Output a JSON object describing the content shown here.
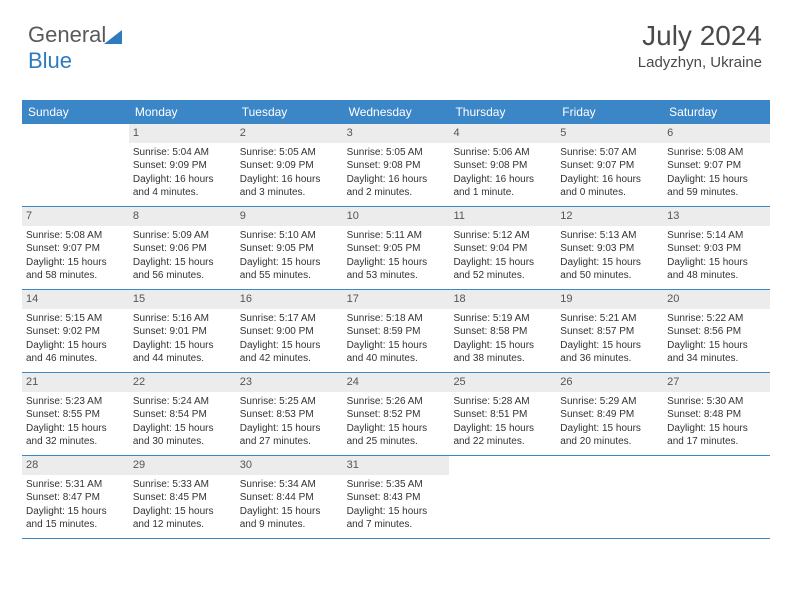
{
  "logo": {
    "text1": "General",
    "text2": "Blue"
  },
  "title": {
    "month": "July 2024",
    "location": "Ladyzhyn, Ukraine"
  },
  "colors": {
    "header_bg": "#3b86c6",
    "header_text": "#ffffff",
    "daynum_bg": "#ececec",
    "border": "#3b86c6",
    "text": "#333333",
    "logo_gray": "#5a5a5a",
    "logo_blue": "#2f7bbf"
  },
  "weekdays": [
    "Sunday",
    "Monday",
    "Tuesday",
    "Wednesday",
    "Thursday",
    "Friday",
    "Saturday"
  ],
  "weeks": [
    [
      {
        "n": "",
        "empty": true
      },
      {
        "n": "1",
        "sr": "Sunrise: 5:04 AM",
        "ss": "Sunset: 9:09 PM",
        "dl": "Daylight: 16 hours and 4 minutes."
      },
      {
        "n": "2",
        "sr": "Sunrise: 5:05 AM",
        "ss": "Sunset: 9:09 PM",
        "dl": "Daylight: 16 hours and 3 minutes."
      },
      {
        "n": "3",
        "sr": "Sunrise: 5:05 AM",
        "ss": "Sunset: 9:08 PM",
        "dl": "Daylight: 16 hours and 2 minutes."
      },
      {
        "n": "4",
        "sr": "Sunrise: 5:06 AM",
        "ss": "Sunset: 9:08 PM",
        "dl": "Daylight: 16 hours and 1 minute."
      },
      {
        "n": "5",
        "sr": "Sunrise: 5:07 AM",
        "ss": "Sunset: 9:07 PM",
        "dl": "Daylight: 16 hours and 0 minutes."
      },
      {
        "n": "6",
        "sr": "Sunrise: 5:08 AM",
        "ss": "Sunset: 9:07 PM",
        "dl": "Daylight: 15 hours and 59 minutes."
      }
    ],
    [
      {
        "n": "7",
        "sr": "Sunrise: 5:08 AM",
        "ss": "Sunset: 9:07 PM",
        "dl": "Daylight: 15 hours and 58 minutes."
      },
      {
        "n": "8",
        "sr": "Sunrise: 5:09 AM",
        "ss": "Sunset: 9:06 PM",
        "dl": "Daylight: 15 hours and 56 minutes."
      },
      {
        "n": "9",
        "sr": "Sunrise: 5:10 AM",
        "ss": "Sunset: 9:05 PM",
        "dl": "Daylight: 15 hours and 55 minutes."
      },
      {
        "n": "10",
        "sr": "Sunrise: 5:11 AM",
        "ss": "Sunset: 9:05 PM",
        "dl": "Daylight: 15 hours and 53 minutes."
      },
      {
        "n": "11",
        "sr": "Sunrise: 5:12 AM",
        "ss": "Sunset: 9:04 PM",
        "dl": "Daylight: 15 hours and 52 minutes."
      },
      {
        "n": "12",
        "sr": "Sunrise: 5:13 AM",
        "ss": "Sunset: 9:03 PM",
        "dl": "Daylight: 15 hours and 50 minutes."
      },
      {
        "n": "13",
        "sr": "Sunrise: 5:14 AM",
        "ss": "Sunset: 9:03 PM",
        "dl": "Daylight: 15 hours and 48 minutes."
      }
    ],
    [
      {
        "n": "14",
        "sr": "Sunrise: 5:15 AM",
        "ss": "Sunset: 9:02 PM",
        "dl": "Daylight: 15 hours and 46 minutes."
      },
      {
        "n": "15",
        "sr": "Sunrise: 5:16 AM",
        "ss": "Sunset: 9:01 PM",
        "dl": "Daylight: 15 hours and 44 minutes."
      },
      {
        "n": "16",
        "sr": "Sunrise: 5:17 AM",
        "ss": "Sunset: 9:00 PM",
        "dl": "Daylight: 15 hours and 42 minutes."
      },
      {
        "n": "17",
        "sr": "Sunrise: 5:18 AM",
        "ss": "Sunset: 8:59 PM",
        "dl": "Daylight: 15 hours and 40 minutes."
      },
      {
        "n": "18",
        "sr": "Sunrise: 5:19 AM",
        "ss": "Sunset: 8:58 PM",
        "dl": "Daylight: 15 hours and 38 minutes."
      },
      {
        "n": "19",
        "sr": "Sunrise: 5:21 AM",
        "ss": "Sunset: 8:57 PM",
        "dl": "Daylight: 15 hours and 36 minutes."
      },
      {
        "n": "20",
        "sr": "Sunrise: 5:22 AM",
        "ss": "Sunset: 8:56 PM",
        "dl": "Daylight: 15 hours and 34 minutes."
      }
    ],
    [
      {
        "n": "21",
        "sr": "Sunrise: 5:23 AM",
        "ss": "Sunset: 8:55 PM",
        "dl": "Daylight: 15 hours and 32 minutes."
      },
      {
        "n": "22",
        "sr": "Sunrise: 5:24 AM",
        "ss": "Sunset: 8:54 PM",
        "dl": "Daylight: 15 hours and 30 minutes."
      },
      {
        "n": "23",
        "sr": "Sunrise: 5:25 AM",
        "ss": "Sunset: 8:53 PM",
        "dl": "Daylight: 15 hours and 27 minutes."
      },
      {
        "n": "24",
        "sr": "Sunrise: 5:26 AM",
        "ss": "Sunset: 8:52 PM",
        "dl": "Daylight: 15 hours and 25 minutes."
      },
      {
        "n": "25",
        "sr": "Sunrise: 5:28 AM",
        "ss": "Sunset: 8:51 PM",
        "dl": "Daylight: 15 hours and 22 minutes."
      },
      {
        "n": "26",
        "sr": "Sunrise: 5:29 AM",
        "ss": "Sunset: 8:49 PM",
        "dl": "Daylight: 15 hours and 20 minutes."
      },
      {
        "n": "27",
        "sr": "Sunrise: 5:30 AM",
        "ss": "Sunset: 8:48 PM",
        "dl": "Daylight: 15 hours and 17 minutes."
      }
    ],
    [
      {
        "n": "28",
        "sr": "Sunrise: 5:31 AM",
        "ss": "Sunset: 8:47 PM",
        "dl": "Daylight: 15 hours and 15 minutes."
      },
      {
        "n": "29",
        "sr": "Sunrise: 5:33 AM",
        "ss": "Sunset: 8:45 PM",
        "dl": "Daylight: 15 hours and 12 minutes."
      },
      {
        "n": "30",
        "sr": "Sunrise: 5:34 AM",
        "ss": "Sunset: 8:44 PM",
        "dl": "Daylight: 15 hours and 9 minutes."
      },
      {
        "n": "31",
        "sr": "Sunrise: 5:35 AM",
        "ss": "Sunset: 8:43 PM",
        "dl": "Daylight: 15 hours and 7 minutes."
      },
      {
        "n": "",
        "empty": true
      },
      {
        "n": "",
        "empty": true
      },
      {
        "n": "",
        "empty": true
      }
    ]
  ]
}
